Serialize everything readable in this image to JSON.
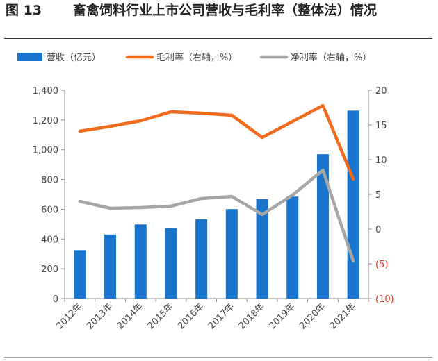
{
  "figure": {
    "number": "图 13",
    "title": "畜禽饲料行业上市公司营收与毛利率（整体法）情况"
  },
  "chart_data": {
    "type": "bar",
    "categories": [
      "2012年",
      "2013年",
      "2014年",
      "2015年",
      "2016年",
      "2017年",
      "2018年",
      "2019年",
      "2020年",
      "2021年"
    ],
    "series": [
      {
        "name": "营收（亿元）",
        "type": "bar",
        "axis": "left",
        "color": "#1874CD",
        "values": [
          325,
          430,
          498,
          474,
          532,
          601,
          668,
          685,
          970,
          1263
        ]
      },
      {
        "name": "毛利率（右轴，%）",
        "type": "line",
        "axis": "right",
        "color": "#F26B1D",
        "values": [
          14.1,
          14.8,
          15.6,
          16.9,
          16.7,
          16.4,
          13.2,
          15.5,
          17.8,
          7.2
        ]
      },
      {
        "name": "净利率（右轴，%）",
        "type": "line",
        "axis": "right",
        "color": "#A6A6A6",
        "values": [
          4.0,
          3.0,
          3.1,
          3.3,
          4.4,
          4.7,
          2.1,
          4.9,
          8.5,
          -4.6
        ]
      }
    ],
    "left_axis": {
      "min": 0,
      "max": 1400,
      "step": 200,
      "tick_labels": [
        "0",
        "200",
        "400",
        "600",
        "800",
        "1,000",
        "1,200",
        "1,400"
      ]
    },
    "right_axis": {
      "min": -10,
      "max": 20,
      "step": 5,
      "tick_labels": [
        "(10)",
        "(5)",
        "0",
        "5",
        "10",
        "15",
        "20"
      ],
      "negative_label_color": "#E8331C"
    },
    "legend": "top",
    "grid": false
  }
}
